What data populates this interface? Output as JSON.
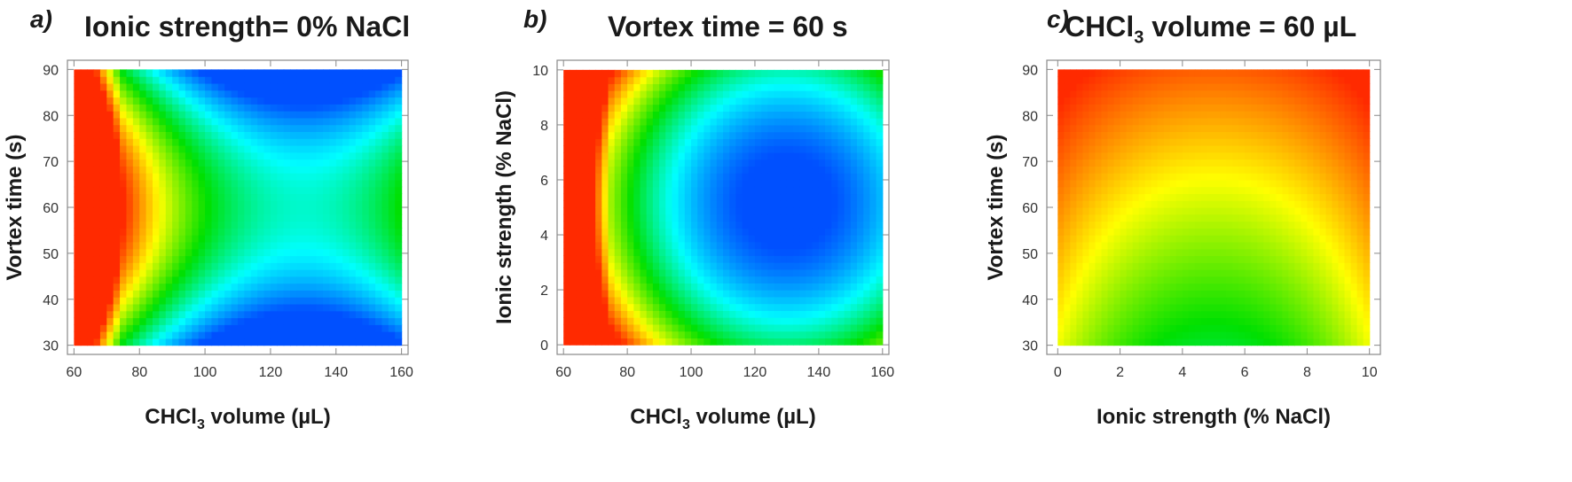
{
  "chart_data": [
    {
      "panel": "a)",
      "type": "heatmap",
      "title_main": "Ionic strength= 0% NaCl",
      "xlabel_main": "CHCl",
      "xlabel_sub": "3",
      "xlabel_rest": " volume (µL)",
      "ylabel": "Vortex time (s)",
      "xlim": [
        58,
        162
      ],
      "ylim": [
        28,
        92
      ],
      "x_ticks": [
        60,
        80,
        100,
        120,
        140,
        160
      ],
      "y_ticks": [
        30,
        40,
        50,
        60,
        70,
        80,
        90
      ],
      "colormap": [
        "#ff2a00",
        "#ffff00",
        "#00e000",
        "#00ffff",
        "#0050ff"
      ],
      "value_range": [
        0.0,
        1.0
      ],
      "model": {
        "a0": 0.0,
        "cx": 130,
        "sx": 60,
        "ax": 0.9,
        "cy": 60,
        "sy": 30,
        "ay": 0.0,
        "bxy": 0.9,
        "bsign": -1,
        "xshift": 0,
        "blueboost": 0.1
      }
    },
    {
      "panel": "b)",
      "type": "heatmap",
      "title_main": "Vortex time = 60 s",
      "xlabel_main": "CHCl",
      "xlabel_sub": "3",
      "xlabel_rest": " volume (µL)",
      "ylabel": "Ionic strength (% NaCl)",
      "xlim": [
        58,
        162
      ],
      "ylim": [
        -0.35,
        10.35
      ],
      "x_ticks": [
        60,
        80,
        100,
        120,
        140,
        160
      ],
      "y_ticks": [
        0,
        2,
        4,
        6,
        8,
        10
      ],
      "colormap": [
        "#ff2a00",
        "#ffff00",
        "#00e000",
        "#00ffff",
        "#0050ff"
      ],
      "value_range": [
        0.0,
        1.0
      ],
      "model": {
        "a0": 0.0,
        "cx": 130,
        "sx": 70,
        "ax": 0.98,
        "cy": 5.2,
        "sy": 5.2,
        "ay": 0.35,
        "bxy": 0.0,
        "bsign": 1,
        "xshift": 0,
        "blueboost": 0.0
      }
    },
    {
      "panel": "c)",
      "type": "heatmap",
      "title_main": "CHCl",
      "title_sub": "3",
      "title_rest": " volume = 60 µL",
      "xlabel_main": "Ionic strength (% NaCl)",
      "xlabel_sub": "",
      "xlabel_rest": "",
      "ylabel": "Vortex time (s)",
      "xlim": [
        -0.35,
        10.35
      ],
      "ylim": [
        28,
        92
      ],
      "x_ticks": [
        0,
        2,
        4,
        6,
        8,
        10
      ],
      "y_ticks": [
        30,
        40,
        50,
        60,
        70,
        80,
        90
      ],
      "colormap": [
        "#ff2a00",
        "#ffff00",
        "#00e000",
        "#00ffff",
        "#0050ff"
      ],
      "value_range": [
        0.0,
        1.0
      ],
      "model": {
        "a0": 0.0,
        "cx": 5,
        "sx": 5,
        "ax": 0.0,
        "cy": 30,
        "sy": 60,
        "ay": 0.0,
        "bxy": 0.0,
        "bsign": 1,
        "xshift": 0,
        "blueboost": 0.0
      }
    }
  ]
}
